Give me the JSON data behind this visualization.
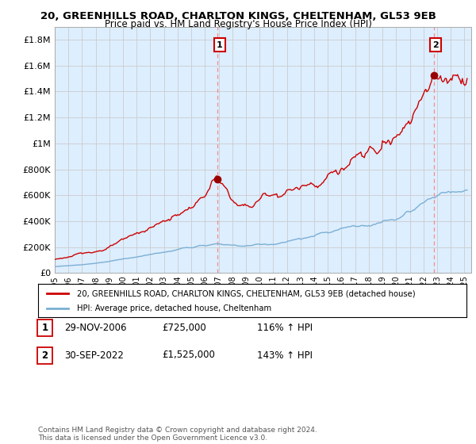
{
  "title": "20, GREENHILLS ROAD, CHARLTON KINGS, CHELTENHAM, GL53 9EB",
  "subtitle": "Price paid vs. HM Land Registry's House Price Index (HPI)",
  "ylim": [
    0,
    1900000
  ],
  "yticks": [
    0,
    200000,
    400000,
    600000,
    800000,
    1000000,
    1200000,
    1400000,
    1600000,
    1800000
  ],
  "ytick_labels": [
    "£0",
    "£200K",
    "£400K",
    "£600K",
    "£800K",
    "£1M",
    "£1.2M",
    "£1.4M",
    "£1.6M",
    "£1.8M"
  ],
  "legend_label1": "20, GREENHILLS ROAD, CHARLTON KINGS, CHELTENHAM, GL53 9EB (detached house)",
  "legend_label2": "HPI: Average price, detached house, Cheltenham",
  "sale1_x": 2006.92,
  "sale1_y": 725000,
  "sale2_x": 2022.75,
  "sale2_y": 1525000,
  "line1_color": "#cc0000",
  "line2_color": "#7bafd4",
  "vline_color": "#ff8888",
  "dot_color": "#990000",
  "grid_color": "#cccccc",
  "bg_color": "#ffffff",
  "plot_bg_color": "#ddeeff",
  "footer": "Contains HM Land Registry data © Crown copyright and database right 2024.\nThis data is licensed under the Open Government Licence v3.0.",
  "xmin": 1995,
  "xmax": 2025.5,
  "annotation1_label": "1",
  "annotation1_date": "29-NOV-2006",
  "annotation1_price": "£725,000",
  "annotation1_hpi": "116% ↑ HPI",
  "annotation2_label": "2",
  "annotation2_date": "30-SEP-2022",
  "annotation2_price": "£1,525,000",
  "annotation2_hpi": "143% ↑ HPI"
}
